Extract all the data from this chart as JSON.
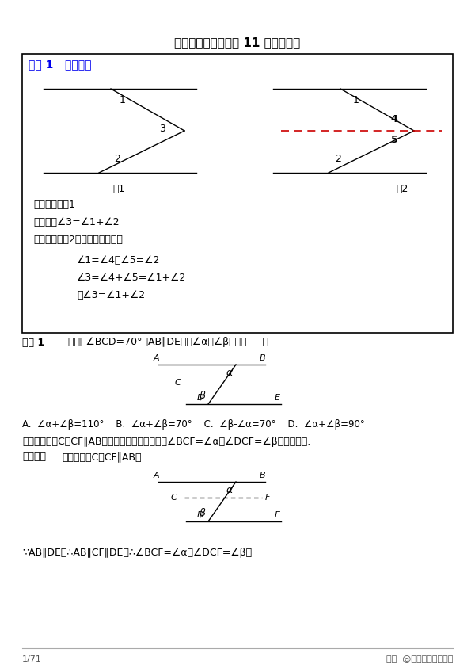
{
  "title": "初中数学角度计算中 11 个经典模型",
  "model1_label": "模型 1   猪脚模型",
  "fig1_label": "图1",
  "fig2_label": "图2",
  "condition_text": "【条件】如图1",
  "conclusion_text": "【结论】∠3=∠1+∠2",
  "proof_line1": "【证明】如图2，过拐点作平行线",
  "proof_line2": "∠1=∠4，∠5=∠2",
  "proof_line3": "∠3=∠4+∠5=∠1+∠2",
  "proof_line4": "即∠3=∠1+∠2",
  "example1_text": "例题 1   如图，∠BCD=70°，AB∥DE，则∠α与∠β满足（     ）",
  "option_A": "A.  ∠α+∠β=110°",
  "option_B": "B.  ∠α+∠β=70°",
  "option_C": "C.  ∠β-∠α=70°",
  "option_D": "D.  ∠α+∠β=90°",
  "analysis_text": "【分析】过点C作CF∥AB，根据平行线的性质得到∠BCF=∠α，∠DCF=∠β，即可解答.",
  "solution_text": "【解析】如图，过点C作CF∥AB，",
  "final_line": "∵AB∥DE，∴AB∥CF∥DE，∴∠BCF=∠α，∠DCF=∠β，",
  "page_label": "1/71",
  "watermark": "知乎  @相伴成长逐梦青春",
  "bg_color": "#FFFFFF"
}
